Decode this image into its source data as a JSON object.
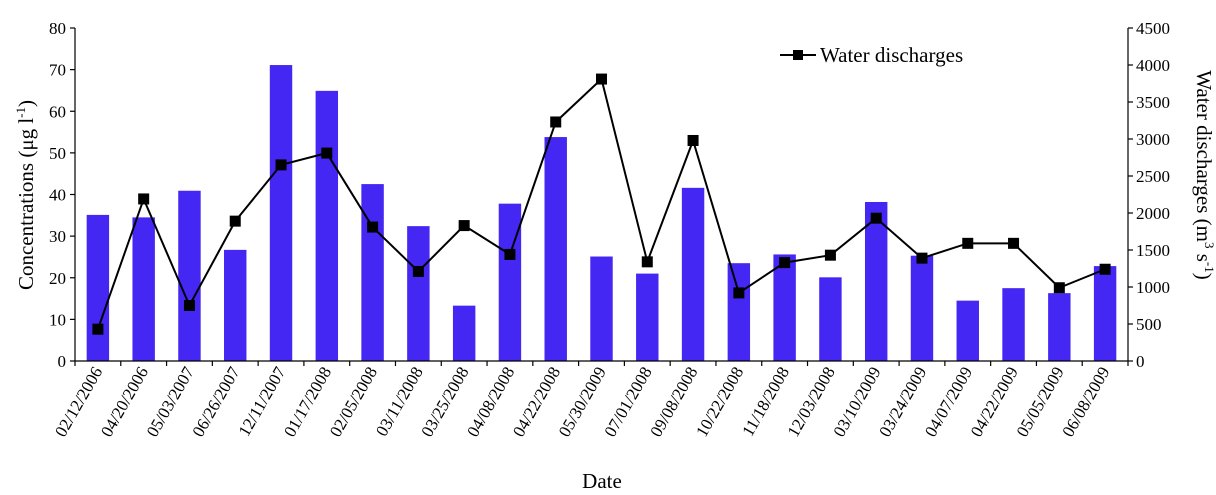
{
  "chart_data": {
    "type": "bar+line",
    "xlabel": "Date",
    "ylabel_left": "Concentrations (μg l",
    "ylabel_left_sup": "-1",
    "ylabel_left_tail": ")",
    "ylabel_right": "Water discharges (m",
    "ylabel_right_sup1": "3",
    "ylabel_right_mid": " s",
    "ylabel_right_sup2": "-1",
    "ylabel_right_tail": ")",
    "ylim_left": [
      0,
      80
    ],
    "yticks_left": [
      "0",
      "10",
      "20",
      "30",
      "40",
      "50",
      "60",
      "70",
      "80"
    ],
    "ylim_right": [
      0,
      4500
    ],
    "yticks_right": [
      "0",
      "500",
      "1000",
      "1500",
      "2000",
      "2500",
      "3000",
      "3500",
      "4000",
      "4500"
    ],
    "grid": false,
    "legend_position": "top-center",
    "categories": [
      "02/12/2006",
      "04/20/2006",
      "05/03/2007",
      "06/26/2007",
      "12/11/2007",
      "01/17/2008",
      "02/05/2008",
      "03/11/2008",
      "03/25/2008",
      "04/08/2008",
      "04/22/2008",
      "05/30/2009",
      "07/01/2008",
      "09/08/2008",
      "10/22/2008",
      "11/18/2008",
      "12/03/2008",
      "03/10/2009",
      "03/24/2009",
      "04/07/2009",
      "04/22/2009",
      "05/05/2009",
      "06/08/2009"
    ],
    "series": [
      {
        "type": "bar",
        "axis": "left",
        "color": "#4427f2",
        "values": [
          35.1,
          34.5,
          40.9,
          26.7,
          71.1,
          64.9,
          42.5,
          32.4,
          13.3,
          37.8,
          53.8,
          25.1,
          21.0,
          41.6,
          23.5,
          25.6,
          20.1,
          38.2,
          25.3,
          14.5,
          17.5,
          16.3,
          22.8
        ]
      },
      {
        "type": "line",
        "axis": "right",
        "name": "Water discharges",
        "color": "#000000",
        "marker": "square",
        "values": [
          430,
          2190,
          750,
          1890,
          2650,
          2810,
          1810,
          1210,
          1830,
          1440,
          3230,
          3810,
          1340,
          2980,
          920,
          1330,
          1430,
          1930,
          1390,
          1590,
          1590,
          990,
          1240
        ]
      }
    ]
  }
}
